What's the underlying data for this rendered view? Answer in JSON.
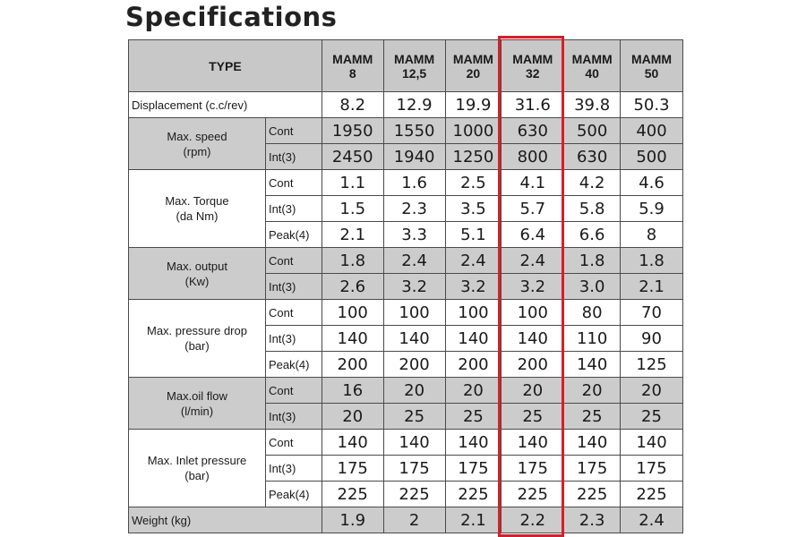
{
  "title": "Specifications",
  "header": {
    "type_label": "TYPE",
    "models": [
      {
        "line1": "MAMM",
        "line2": "8"
      },
      {
        "line1": "MAMM",
        "line2": "12,5"
      },
      {
        "line1": "MAMM",
        "line2": "20"
      },
      {
        "line1": "MAMM",
        "line2": "32"
      },
      {
        "line1": "MAMM",
        "line2": "40"
      },
      {
        "line1": "MAMM",
        "line2": "50"
      }
    ]
  },
  "highlighted_model": "MAMM 32",
  "colors": {
    "highlight": "#d62027",
    "shade": "#cccccc"
  },
  "displacement": {
    "label": "Displacement (c.c/rev)",
    "values": [
      "8.2",
      "12.9",
      "19.9",
      "31.6",
      "39.8",
      "50.3"
    ]
  },
  "groups": [
    {
      "label_l1": "Max. speed",
      "label_l2": "(rpm)",
      "shaded": true,
      "rows": [
        {
          "sub": "Cont",
          "values": [
            "1950",
            "1550",
            "1000",
            "630",
            "500",
            "400"
          ]
        },
        {
          "sub": "Int(3)",
          "values": [
            "2450",
            "1940",
            "1250",
            "800",
            "630",
            "500"
          ]
        }
      ]
    },
    {
      "label_l1": "Max. Torque",
      "label_l2": "(da Nm)",
      "shaded": false,
      "rows": [
        {
          "sub": "Cont",
          "values": [
            "1.1",
            "1.6",
            "2.5",
            "4.1",
            "4.2",
            "4.6"
          ]
        },
        {
          "sub": "Int(3)",
          "values": [
            "1.5",
            "2.3",
            "3.5",
            "5.7",
            "5.8",
            "5.9"
          ]
        },
        {
          "sub": "Peak(4)",
          "values": [
            "2.1",
            "3.3",
            "5.1",
            "6.4",
            "6.6",
            "8"
          ]
        }
      ]
    },
    {
      "label_l1": "Max. output",
      "label_l2": "(Kw)",
      "shaded": true,
      "rows": [
        {
          "sub": "Cont",
          "values": [
            "1.8",
            "2.4",
            "2.4",
            "2.4",
            "1.8",
            "1.8"
          ]
        },
        {
          "sub": "Int(3)",
          "values": [
            "2.6",
            "3.2",
            "3.2",
            "3.2",
            "3.0",
            "2.1"
          ]
        }
      ]
    },
    {
      "label_l1": "Max. pressure drop",
      "label_l2": "(bar)",
      "shaded": false,
      "rows": [
        {
          "sub": "Cont",
          "values": [
            "100",
            "100",
            "100",
            "100",
            "80",
            "70"
          ]
        },
        {
          "sub": "Int(3)",
          "values": [
            "140",
            "140",
            "140",
            "140",
            "110",
            "90"
          ]
        },
        {
          "sub": "Peak(4)",
          "values": [
            "200",
            "200",
            "200",
            "200",
            "140",
            "125"
          ]
        }
      ]
    },
    {
      "label_l1": "Max.oil  flow",
      "label_l2": "(l/min)",
      "shaded": true,
      "rows": [
        {
          "sub": "Cont",
          "values": [
            "16",
            "20",
            "20",
            "20",
            "20",
            "20"
          ]
        },
        {
          "sub": "Int(3)",
          "values": [
            "20",
            "25",
            "25",
            "25",
            "25",
            "25"
          ]
        }
      ]
    },
    {
      "label_l1": "Max. Inlet pressure",
      "label_l2": "(bar)",
      "shaded": false,
      "rows": [
        {
          "sub": "Cont",
          "values": [
            "140",
            "140",
            "140",
            "140",
            "140",
            "140"
          ]
        },
        {
          "sub": "Int(3)",
          "values": [
            "175",
            "175",
            "175",
            "175",
            "175",
            "175"
          ]
        },
        {
          "sub": "Peak(4)",
          "values": [
            "225",
            "225",
            "225",
            "225",
            "225",
            "225"
          ]
        }
      ]
    }
  ],
  "weight": {
    "label": "Weight  (kg)",
    "values": [
      "1.9",
      "2",
      "2.1",
      "2.2",
      "2.3",
      "2.4"
    ]
  }
}
